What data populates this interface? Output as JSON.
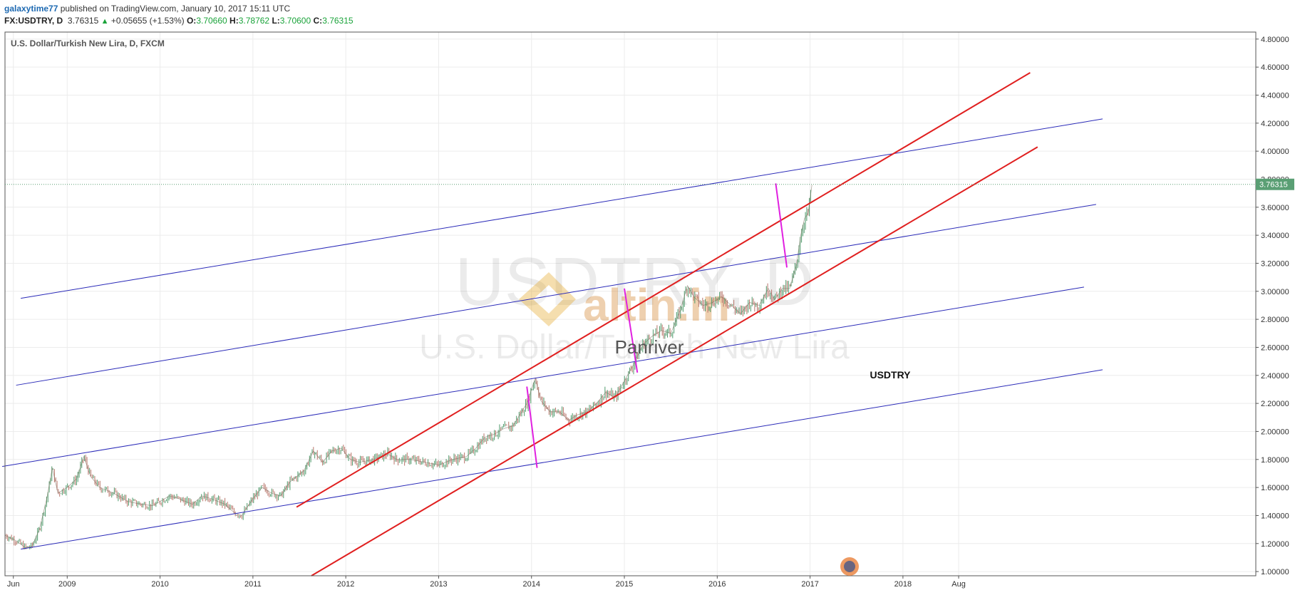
{
  "header": {
    "author": "galaxytime77",
    "published": "published on TradingView.com, January 10, 2017 15:11 UTC",
    "symbol": "FX:USDTRY, D",
    "last": "3.76315",
    "change": "+0.05655 (+1.53%)",
    "open_label": "O:",
    "open": "3.70660",
    "high_label": "H:",
    "high": "3.78762",
    "low_label": "L:",
    "low": "3.70600",
    "close_label": "C:",
    "close": "3.76315",
    "colors": {
      "author": "#1e6ab2",
      "up": "#1aa33a"
    }
  },
  "chart_data": {
    "type": "line",
    "title": "U.S. Dollar/Turkish New Lira, D, FXCM",
    "watermark_symbol": "USDTRY, D",
    "watermark_name": "U.S. Dollar/Turkish New Lira",
    "watermark_logo_text": "altin.in",
    "annotations": [
      "Panriver",
      "USDTRY"
    ],
    "price_label": "3.76315",
    "y_axis": {
      "ylim": [
        0.97,
        4.85
      ],
      "ticks": [
        "4.80000",
        "4.60000",
        "4.40000",
        "4.20000",
        "4.00000",
        "3.80000",
        "3.60000",
        "3.40000",
        "3.20000",
        "3.00000",
        "2.80000",
        "2.60000",
        "2.40000",
        "2.20000",
        "2.00000",
        "1.80000",
        "1.60000",
        "1.40000",
        "1.20000",
        "1.00000"
      ]
    },
    "x_axis": {
      "xlim": [
        2008.33,
        2021.8
      ],
      "ticks": [
        {
          "label": "Jun",
          "x": 2008.42
        },
        {
          "label": "2009",
          "x": 2009.0
        },
        {
          "label": "2010",
          "x": 2010.0
        },
        {
          "label": "2011",
          "x": 2011.0
        },
        {
          "label": "2012",
          "x": 2012.0
        },
        {
          "label": "2013",
          "x": 2013.0
        },
        {
          "label": "2014",
          "x": 2014.0
        },
        {
          "label": "2015",
          "x": 2015.0
        },
        {
          "label": "2016",
          "x": 2016.0
        },
        {
          "label": "2017",
          "x": 2017.0
        },
        {
          "label": "2018",
          "x": 2018.0
        },
        {
          "label": "Aug",
          "x": 2018.6
        }
      ]
    },
    "grid": true,
    "series": [
      {
        "values": [
          [
            2008.33,
            1.26
          ],
          [
            2008.45,
            1.22
          ],
          [
            2008.55,
            1.17
          ],
          [
            2008.62,
            1.18
          ],
          [
            2008.7,
            1.3
          ],
          [
            2008.78,
            1.52
          ],
          [
            2008.84,
            1.74
          ],
          [
            2008.9,
            1.56
          ],
          [
            2009.0,
            1.6
          ],
          [
            2009.1,
            1.66
          ],
          [
            2009.18,
            1.82
          ],
          [
            2009.25,
            1.68
          ],
          [
            2009.35,
            1.6
          ],
          [
            2009.5,
            1.56
          ],
          [
            2009.65,
            1.5
          ],
          [
            2009.8,
            1.48
          ],
          [
            2009.92,
            1.47
          ],
          [
            2010.0,
            1.5
          ],
          [
            2010.1,
            1.54
          ],
          [
            2010.2,
            1.52
          ],
          [
            2010.35,
            1.48
          ],
          [
            2010.45,
            1.54
          ],
          [
            2010.55,
            1.52
          ],
          [
            2010.7,
            1.48
          ],
          [
            2010.8,
            1.42
          ],
          [
            2010.88,
            1.4
          ],
          [
            2011.0,
            1.52
          ],
          [
            2011.1,
            1.6
          ],
          [
            2011.2,
            1.56
          ],
          [
            2011.3,
            1.54
          ],
          [
            2011.4,
            1.64
          ],
          [
            2011.55,
            1.72
          ],
          [
            2011.65,
            1.86
          ],
          [
            2011.75,
            1.78
          ],
          [
            2011.85,
            1.86
          ],
          [
            2011.95,
            1.88
          ],
          [
            2012.05,
            1.8
          ],
          [
            2012.15,
            1.78
          ],
          [
            2012.3,
            1.8
          ],
          [
            2012.45,
            1.84
          ],
          [
            2012.55,
            1.8
          ],
          [
            2012.7,
            1.8
          ],
          [
            2012.85,
            1.78
          ],
          [
            2013.0,
            1.76
          ],
          [
            2013.15,
            1.8
          ],
          [
            2013.3,
            1.82
          ],
          [
            2013.4,
            1.88
          ],
          [
            2013.5,
            1.96
          ],
          [
            2013.6,
            1.98
          ],
          [
            2013.7,
            2.02
          ],
          [
            2013.8,
            2.04
          ],
          [
            2013.95,
            2.2
          ],
          [
            2014.04,
            2.38
          ],
          [
            2014.1,
            2.22
          ],
          [
            2014.2,
            2.14
          ],
          [
            2014.3,
            2.14
          ],
          [
            2014.4,
            2.08
          ],
          [
            2014.5,
            2.12
          ],
          [
            2014.6,
            2.14
          ],
          [
            2014.7,
            2.2
          ],
          [
            2014.8,
            2.28
          ],
          [
            2014.9,
            2.24
          ],
          [
            2015.0,
            2.36
          ],
          [
            2015.1,
            2.48
          ],
          [
            2015.2,
            2.62
          ],
          [
            2015.3,
            2.68
          ],
          [
            2015.4,
            2.72
          ],
          [
            2015.5,
            2.7
          ],
          [
            2015.6,
            2.86
          ],
          [
            2015.68,
            3.04
          ],
          [
            2015.75,
            2.96
          ],
          [
            2015.85,
            2.9
          ],
          [
            2015.95,
            2.92
          ],
          [
            2016.05,
            2.96
          ],
          [
            2016.15,
            2.9
          ],
          [
            2016.25,
            2.84
          ],
          [
            2016.35,
            2.92
          ],
          [
            2016.45,
            2.9
          ],
          [
            2016.55,
            3.02
          ],
          [
            2016.62,
            2.94
          ],
          [
            2016.7,
            3.02
          ],
          [
            2016.78,
            3.02
          ],
          [
            2016.85,
            3.18
          ],
          [
            2016.9,
            3.4
          ],
          [
            2016.94,
            3.52
          ],
          [
            2016.98,
            3.56
          ],
          [
            2017.02,
            3.76
          ]
        ]
      }
    ],
    "trendlines": [
      {
        "color": "#2a2ab8",
        "from": [
          2008.5,
          2.95
        ],
        "to": [
          2020.15,
          4.23
        ]
      },
      {
        "color": "#2a2ab8",
        "from": [
          2008.45,
          2.33
        ],
        "to": [
          2020.08,
          3.62
        ]
      },
      {
        "color": "#2a2ab8",
        "from": [
          2008.3,
          1.75
        ],
        "to": [
          2019.95,
          3.03
        ]
      },
      {
        "color": "#2a2ab8",
        "from": [
          2008.5,
          1.16
        ],
        "to": [
          2020.15,
          2.44
        ]
      },
      {
        "color": "#e01f1f",
        "from": [
          2011.47,
          1.46
        ],
        "to": [
          2019.37,
          4.56
        ]
      },
      {
        "color": "#e01f1f",
        "from": [
          2011.63,
          0.97
        ],
        "to": [
          2019.45,
          4.03
        ]
      },
      {
        "color": "#e020e0",
        "from": [
          2013.95,
          2.32
        ],
        "to": [
          2014.06,
          1.74
        ]
      },
      {
        "color": "#e020e0",
        "from": [
          2015.0,
          3.02
        ],
        "to": [
          2015.14,
          2.42
        ]
      },
      {
        "color": "#e020e0",
        "from": [
          2016.63,
          3.77
        ],
        "to": [
          2016.75,
          3.17
        ]
      }
    ],
    "colors": {
      "candle_up": "#4f9a6b",
      "candle_down": "#b8756a",
      "price_label_bg": "#5a9f74",
      "grid": "#ececec",
      "border": "#555555"
    }
  }
}
